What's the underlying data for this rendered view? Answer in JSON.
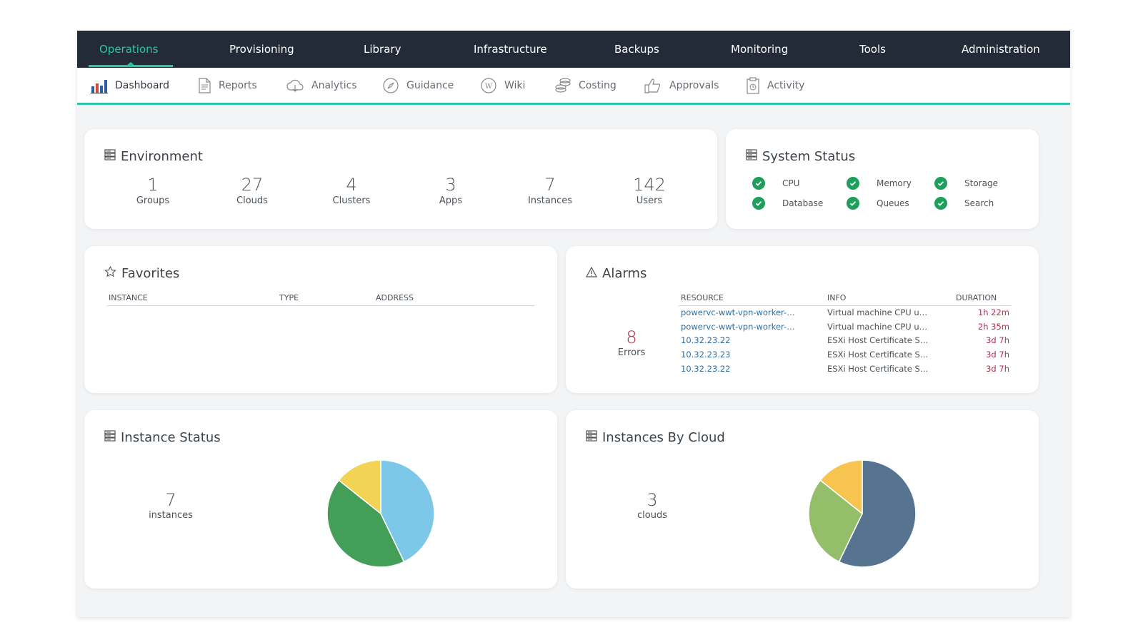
{
  "topnav": {
    "items": [
      "Operations",
      "Provisioning",
      "Library",
      "Infrastructure",
      "Backups",
      "Monitoring",
      "Tools",
      "Administration"
    ],
    "active": "Operations",
    "accent_color": "#2ec4a5",
    "background_color": "#222b37"
  },
  "subnav": {
    "items": [
      {
        "label": "Dashboard",
        "icon": "bar-chart-icon"
      },
      {
        "label": "Reports",
        "icon": "document-icon"
      },
      {
        "label": "Analytics",
        "icon": "cloud-icon"
      },
      {
        "label": "Guidance",
        "icon": "compass-icon"
      },
      {
        "label": "Wiki",
        "icon": "wiki-icon"
      },
      {
        "label": "Costing",
        "icon": "coins-icon"
      },
      {
        "label": "Approvals",
        "icon": "thumbs-up-icon"
      },
      {
        "label": "Activity",
        "icon": "clipboard-icon"
      }
    ],
    "active": "Dashboard"
  },
  "environment": {
    "title": "Environment",
    "stats": [
      {
        "value": "1",
        "label": "Groups"
      },
      {
        "value": "27",
        "label": "Clouds"
      },
      {
        "value": "4",
        "label": "Clusters"
      },
      {
        "value": "3",
        "label": "Apps"
      },
      {
        "value": "7",
        "label": "Instances"
      },
      {
        "value": "142",
        "label": "Users"
      }
    ]
  },
  "system_status": {
    "title": "System Status",
    "items": [
      {
        "label": "CPU",
        "status": "ok"
      },
      {
        "label": "Memory",
        "status": "ok"
      },
      {
        "label": "Storage",
        "status": "ok"
      },
      {
        "label": "Database",
        "status": "ok"
      },
      {
        "label": "Queues",
        "status": "ok"
      },
      {
        "label": "Search",
        "status": "ok"
      }
    ],
    "ok_color": "#1e9f5b"
  },
  "favorites": {
    "title": "Favorites",
    "columns": [
      "INSTANCE",
      "TYPE",
      "ADDRESS"
    ]
  },
  "alarms": {
    "title": "Alarms",
    "error_count": "8",
    "error_label": "Errors",
    "columns": [
      "RESOURCE",
      "INFO",
      "DURATION"
    ],
    "rows": [
      {
        "resource": "powervc-wwt-vpn-worker-host",
        "info": "Virtual machine CPU usage",
        "duration": "1h 22m"
      },
      {
        "resource": "powervc-wwt-vpn-worker-host",
        "info": "Virtual machine CPU usage",
        "duration": "2h 35m"
      },
      {
        "resource": "10.32.23.22",
        "info": "ESXi Host Certificate Status",
        "duration": "3d 7h"
      },
      {
        "resource": "10.32.23.23",
        "info": "ESXi Host Certificate Status",
        "duration": "3d 7h"
      },
      {
        "resource": "10.32.23.22",
        "info": "ESXi Host Certificate Status",
        "duration": "3d 7h"
      }
    ]
  },
  "instance_status": {
    "title": "Instance Status",
    "count": "7",
    "count_label": "instances"
  },
  "instances_by_cloud": {
    "title": "Instances By Cloud",
    "count": "3",
    "count_label": "clouds"
  },
  "chart_data": [
    {
      "type": "pie",
      "chart": "instance-status",
      "values": [
        3,
        3,
        1
      ],
      "colors": [
        "#7dc8e8",
        "#439e57",
        "#f3d353"
      ]
    },
    {
      "type": "pie",
      "chart": "instances-by-cloud",
      "values": [
        4,
        2,
        1
      ],
      "colors": [
        "#56738f",
        "#95be6a",
        "#f6c44f"
      ]
    }
  ]
}
